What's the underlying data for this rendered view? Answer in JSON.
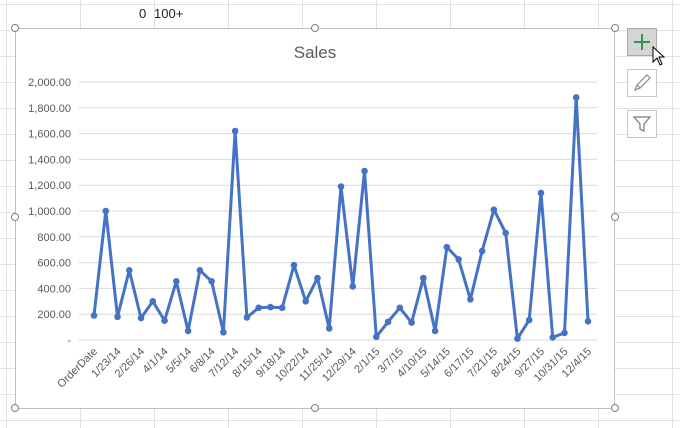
{
  "sheet": {
    "cells": [
      {
        "text": "0"
      },
      {
        "text": "100+"
      }
    ]
  },
  "chart_buttons": [
    {
      "icon": "plus-icon",
      "state": "active"
    },
    {
      "icon": "brush-icon",
      "state": "normal"
    },
    {
      "icon": "filter-icon",
      "state": "normal"
    }
  ],
  "chart_data": {
    "type": "line",
    "title": "Sales",
    "xlabel": "",
    "ylabel": "",
    "ylim": [
      0,
      2000
    ],
    "y_ticks": [
      0,
      200,
      400,
      600,
      800,
      1000,
      1200,
      1400,
      1600,
      1800,
      2000
    ],
    "y_tick_labels": [
      "-",
      "200.00",
      "400.00",
      "600.00",
      "800.00",
      "1,000.00",
      "1,200.00",
      "1,400.00",
      "1,600.00",
      "1,800.00",
      "2,000.00"
    ],
    "x_tick_labels": [
      "OrderDate",
      "1/23/14",
      "2/26/14",
      "4/1/14",
      "5/5/14",
      "6/8/14",
      "7/12/14",
      "8/15/14",
      "9/18/14",
      "10/22/14",
      "11/25/14",
      "12/29/14",
      "2/1/15",
      "3/7/15",
      "4/10/15",
      "5/14/15",
      "6/17/15",
      "7/21/15",
      "8/24/15",
      "9/27/15",
      "10/31/15",
      "12/4/15"
    ],
    "grid": true,
    "legend": "none",
    "series": [
      {
        "color": "#4472c4",
        "values": [
          190,
          1000,
          180,
          540,
          170,
          300,
          150,
          455,
          70,
          540,
          455,
          60,
          1620,
          175,
          250,
          255,
          250,
          580,
          300,
          480,
          90,
          1190,
          415,
          1310,
          25,
          140,
          250,
          135,
          480,
          70,
          720,
          625,
          315,
          690,
          1010,
          830,
          10,
          155,
          1140,
          20,
          55,
          1880,
          145
        ]
      }
    ]
  }
}
